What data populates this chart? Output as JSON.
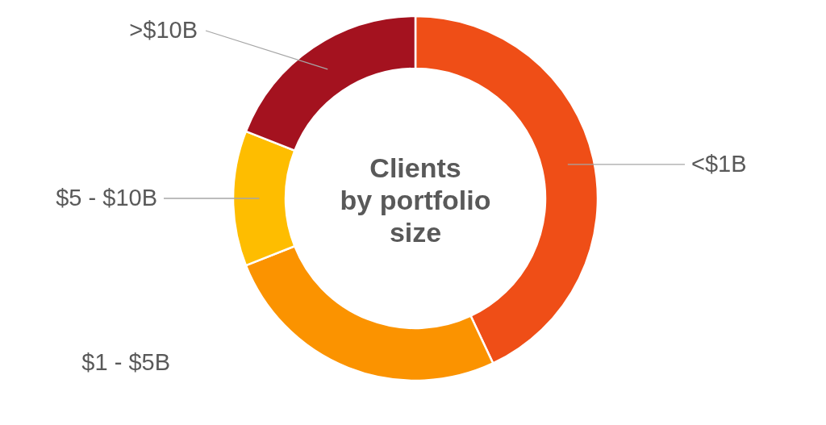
{
  "chart_data": {
    "type": "donut",
    "title": "Clients by portfolio size",
    "categories": [
      "<$1B",
      "$1 - $5B",
      "$5 - $10B",
      ">$10B"
    ],
    "values": [
      43,
      26,
      12,
      19
    ],
    "colors": [
      "#ef4e17",
      "#fb9300",
      "#febd00",
      "#a4121f"
    ]
  }
}
